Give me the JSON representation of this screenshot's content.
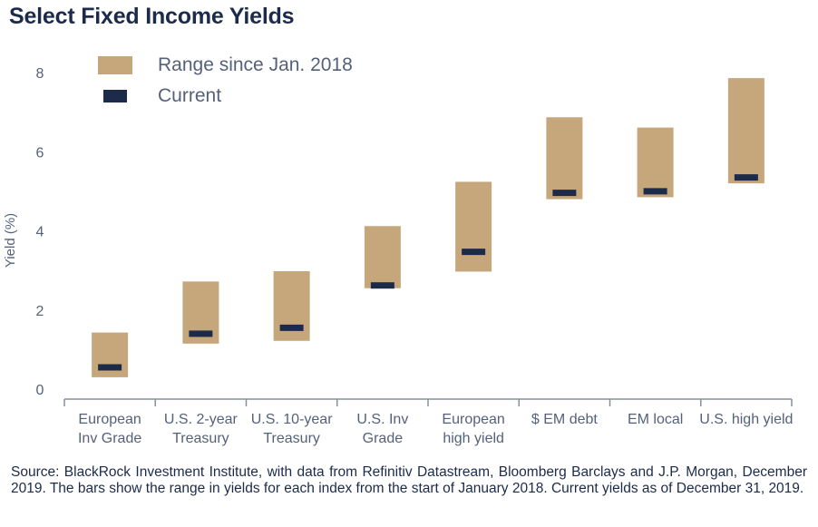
{
  "title": "Select Fixed Income Yields",
  "source": "Source: BlackRock Investment Institute, with data from Refinitiv Datastream, Bloomberg Barclays and J.P. Morgan, December 2019. The bars show the range in yields for each index from the start of January 2018. Current yields as of December 31, 2019.",
  "colors": {
    "range": "#c6a67b",
    "current": "#1c2b4a",
    "text": "#55617a",
    "axis": "#8a8f99"
  },
  "chart_data": {
    "type": "bar",
    "subtype": "floating-range-with-marker",
    "ylabel": "Yield (%)",
    "ylim": [
      0,
      8
    ],
    "yticks": [
      0,
      2,
      4,
      6,
      8
    ],
    "grid": false,
    "legend": {
      "placement": "top-left",
      "entries": [
        {
          "key": "range",
          "label": "Range since Jan. 2018"
        },
        {
          "key": "current",
          "label": "Current"
        }
      ]
    },
    "categories": [
      [
        "European",
        "Inv Grade"
      ],
      [
        "U.S. 2-year",
        "Treasury"
      ],
      [
        "U.S. 10-year",
        "Treasury"
      ],
      [
        "U.S. Inv",
        "Grade"
      ],
      [
        "European",
        "high yield"
      ],
      [
        "$ EM debt"
      ],
      [
        "EM local"
      ],
      [
        "U.S. high yield"
      ]
    ],
    "series": [
      {
        "name": "Range since Jan. 2018",
        "low": [
          0.3,
          1.15,
          1.22,
          2.55,
          2.97,
          4.8,
          4.85,
          5.2
        ],
        "high": [
          1.43,
          2.72,
          2.98,
          4.12,
          5.24,
          6.87,
          6.61,
          7.86
        ]
      },
      {
        "name": "Current",
        "values": [
          0.55,
          1.4,
          1.55,
          2.62,
          3.47,
          4.96,
          5.0,
          5.35
        ]
      }
    ]
  }
}
